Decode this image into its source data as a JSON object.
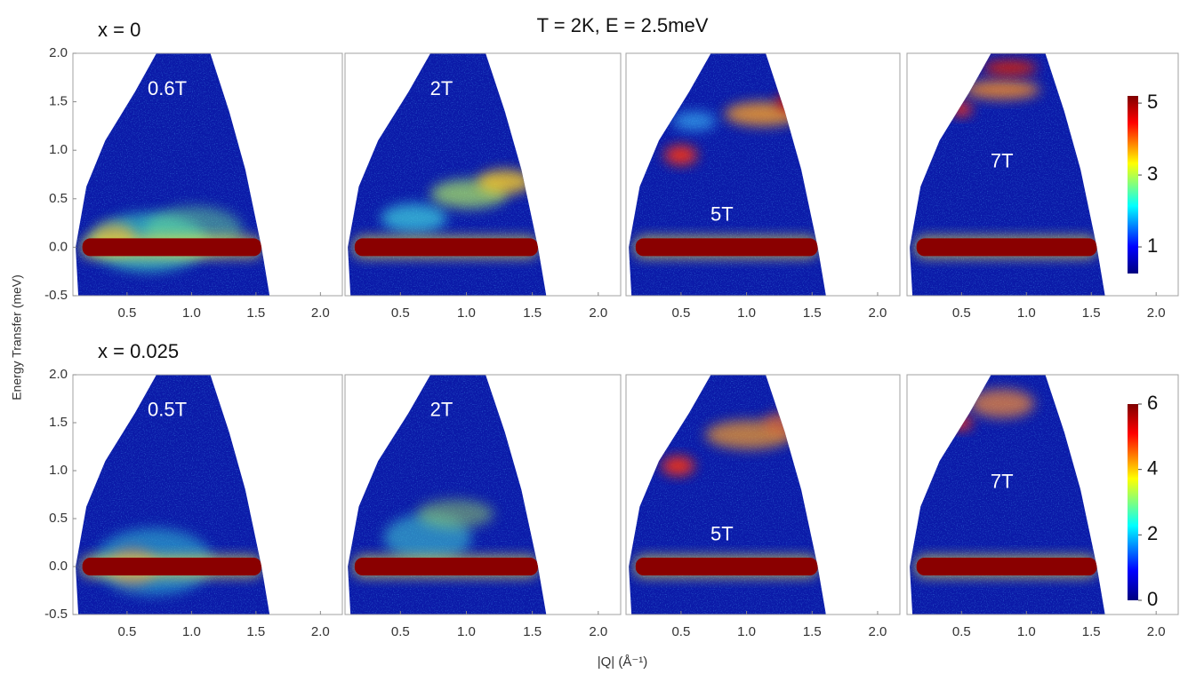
{
  "figure": {
    "title": "T = 2K, E = 2.5meV",
    "ylabel": "Energy Transfer (meV)",
    "xlabel": "|Q| (Å⁻¹)"
  },
  "chart_data": [
    {
      "type": "heatmap",
      "row_label": "x = 0",
      "label": "0.6T",
      "xlim": [
        0.08,
        2.17
      ],
      "ylim": [
        -0.5,
        2.0
      ],
      "xticks": [
        0.5,
        {
          "value": 1.0,
          "label": "1.0"
        },
        1.5,
        {
          "value": 2.0,
          "label": "2.0"
        }
      ],
      "yticks": [
        {
          "value": -0.5,
          "label": "-0.5"
        },
        {
          "value": 0.0,
          "label": "0.0"
        },
        0.5,
        {
          "value": 1.0,
          "label": "1.0"
        },
        1.5,
        {
          "value": 2.0,
          "label": "2.0"
        }
      ]
    },
    {
      "type": "heatmap",
      "label": "2T",
      "xlim": [
        0.08,
        2.17
      ],
      "ylim": [
        -0.5,
        2.0
      ],
      "xticks": [
        0.5,
        {
          "value": 1.0,
          "label": "1.0"
        },
        1.5,
        {
          "value": 2.0,
          "label": "2.0"
        }
      ]
    },
    {
      "type": "heatmap",
      "label": "5T",
      "xlim": [
        0.08,
        2.17
      ],
      "ylim": [
        -0.5,
        2.0
      ],
      "xticks": [
        0.5,
        {
          "value": 1.0,
          "label": "1.0"
        },
        1.5,
        {
          "value": 2.0,
          "label": "2.0"
        }
      ]
    },
    {
      "type": "heatmap",
      "label": "7T",
      "xlim": [
        0.08,
        2.17
      ],
      "ylim": [
        -0.5,
        2.0
      ],
      "xticks": [
        0.5,
        {
          "value": 1.0,
          "label": "1.0"
        },
        1.5,
        {
          "value": 2.0,
          "label": "2.0"
        }
      ],
      "colorbar": {
        "lim": [
          0.26,
          5.2
        ],
        "ticks": [
          1,
          3,
          5
        ]
      }
    },
    {
      "type": "heatmap",
      "row_label": "x = 0.025",
      "label": "0.5T",
      "xlim": [
        0.08,
        2.17
      ],
      "ylim": [
        -0.5,
        2.0
      ],
      "xticks": [
        0.5,
        {
          "value": 1.0,
          "label": "1.0"
        },
        1.5,
        {
          "value": 2.0,
          "label": "2.0"
        }
      ],
      "yticks": [
        {
          "value": -0.5,
          "label": "-0.5"
        },
        {
          "value": 0.0,
          "label": "0.0"
        },
        0.5,
        {
          "value": 1.0,
          "label": "1.0"
        },
        1.5,
        {
          "value": 2.0,
          "label": "2.0"
        }
      ]
    },
    {
      "type": "heatmap",
      "label": "2T",
      "xlim": [
        0.08,
        2.17
      ],
      "ylim": [
        -0.5,
        2.0
      ],
      "xticks": [
        0.5,
        {
          "value": 1.0,
          "label": "1.0"
        },
        1.5,
        {
          "value": 2.0,
          "label": "2.0"
        }
      ]
    },
    {
      "type": "heatmap",
      "label": "5T",
      "xlim": [
        0.08,
        2.17
      ],
      "ylim": [
        -0.5,
        2.0
      ],
      "xticks": [
        0.5,
        {
          "value": 1.0,
          "label": "1.0"
        },
        1.5,
        {
          "value": 2.0,
          "label": "2.0"
        }
      ]
    },
    {
      "type": "heatmap",
      "label": "7T",
      "xlim": [
        0.08,
        2.17
      ],
      "ylim": [
        -0.5,
        2.0
      ],
      "xticks": [
        0.5,
        {
          "value": 1.0,
          "label": "1.0"
        },
        1.5,
        {
          "value": 2.0,
          "label": "2.0"
        }
      ],
      "colorbar": {
        "lim": [
          0,
          6
        ],
        "ticks": [
          0,
          2,
          4,
          6
        ]
      }
    }
  ]
}
